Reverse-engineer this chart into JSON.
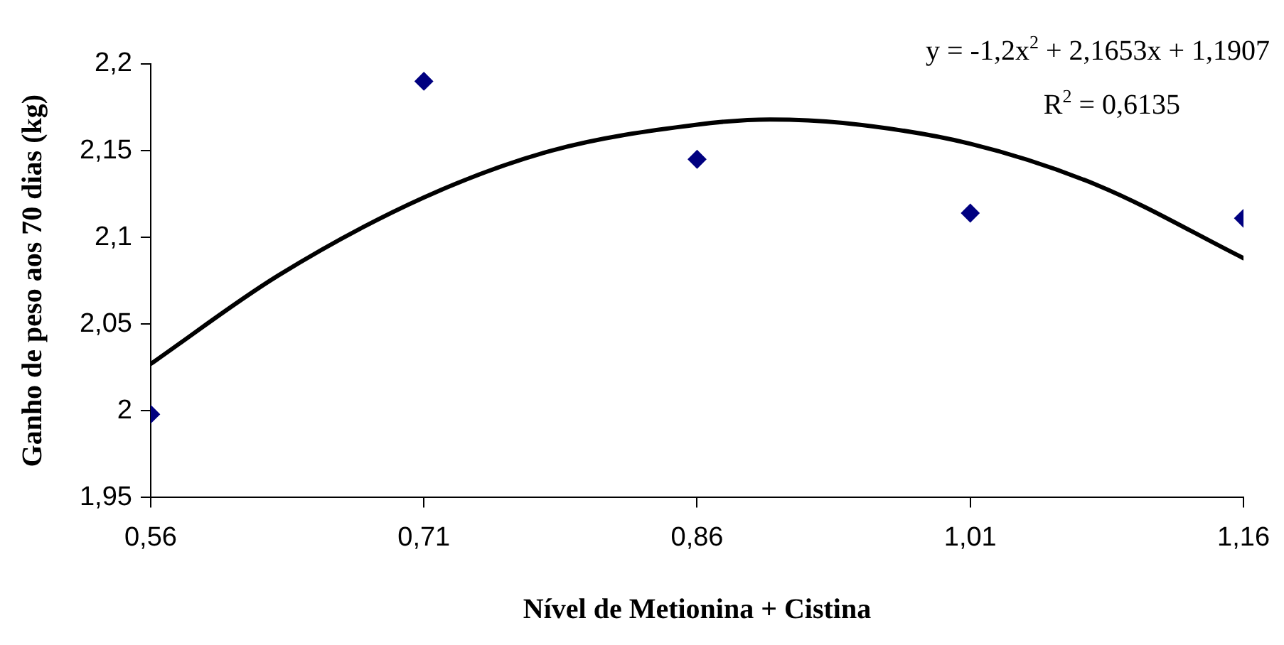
{
  "chart_data": {
    "type": "scatter",
    "xlabel": "Nível de Metionina + Cistina",
    "ylabel": "Ganho de peso aos 70 dias (kg)",
    "x": [
      0.56,
      0.71,
      0.86,
      1.01,
      1.16
    ],
    "series": [
      {
        "color": "#000080",
        "marker": "diamond",
        "values": [
          1.998,
          2.19,
          2.145,
          2.114,
          2.111
        ]
      },
      {
        "type": "line",
        "color": "#000000",
        "marker": "none",
        "x": [
          0.56,
          0.63,
          0.71,
          0.78,
          0.86,
          0.9,
          0.94,
          1.01,
          1.08,
          1.16
        ],
        "values": [
          2.027,
          2.078,
          2.123,
          2.15,
          2.165,
          2.168,
          2.166,
          2.154,
          2.13,
          2.088
        ]
      }
    ],
    "xlim": [
      0.56,
      1.16
    ],
    "xticks": [
      {
        "value": 0.56,
        "label": "0,56"
      },
      {
        "value": 0.71,
        "label": "0,71"
      },
      {
        "value": 0.86,
        "label": "0,86"
      },
      {
        "value": 1.01,
        "label": "1,01"
      },
      {
        "value": 1.16,
        "label": "1,16"
      }
    ],
    "ylim": [
      1.95,
      2.2
    ],
    "yticks": [
      {
        "value": 1.95,
        "label": "1,95"
      },
      {
        "value": 2,
        "label": "2"
      },
      {
        "value": 2.05,
        "label": "2,05"
      },
      {
        "value": 2.1,
        "label": "2,1"
      },
      {
        "value": 2.15,
        "label": "2,15"
      },
      {
        "value": 2.2,
        "label": "2,2"
      }
    ],
    "grid": false,
    "legend": false,
    "annotations": [
      "y = -1,2x$^{2}$ + 2,1653x + 1,1907",
      "R$^{2}$ = 0,6135"
    ]
  }
}
